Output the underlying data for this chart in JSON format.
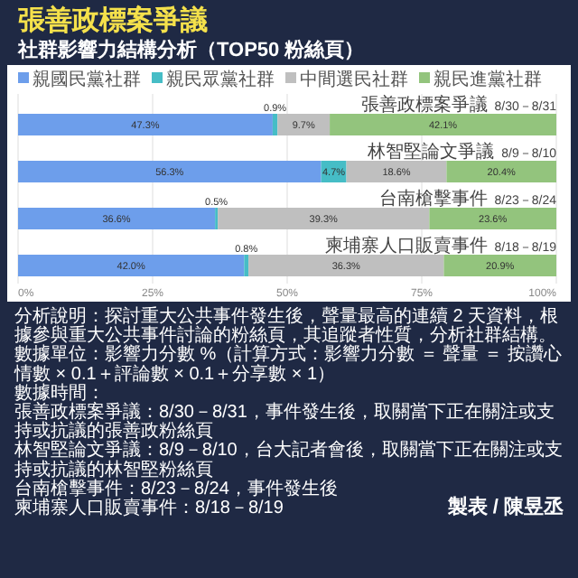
{
  "chart_data": {
    "type": "bar",
    "orientation": "horizontal",
    "stacked": true,
    "title": "張善政標案爭議",
    "subtitle": "社群影響力結構分析（TOP50 粉絲頁）",
    "categories": [
      "張善政標案爭議\n8/30－8/31",
      "林智堅論文爭議\n8/9－8/10",
      "台南槍擊事件\n8/23－8/24",
      "柬埔寨人口販賣事件\n8/18－8/19"
    ],
    "series": [
      {
        "name": "親國民黨社群",
        "color": "#6d9eeb",
        "values": [
          47.3,
          56.3,
          36.6,
          42.0
        ],
        "value_labels": [
          "47.3%",
          "56.3%",
          "36.6%",
          "42.0%"
        ]
      },
      {
        "name": "親民眾黨社群",
        "color": "#46bdc6",
        "values": [
          0.9,
          4.7,
          0.5,
          0.8
        ],
        "value_labels": [
          "0.9%",
          "4.7%",
          "0.5%",
          "0.8%"
        ]
      },
      {
        "name": "中間選民社群",
        "color": "#bfbfbf",
        "values": [
          9.7,
          18.6,
          39.3,
          36.3
        ],
        "value_labels": [
          "9.7%",
          "18.6%",
          "39.3%",
          "36.3%"
        ]
      },
      {
        "name": "親民進黨社群",
        "color": "#93c47d",
        "values": [
          42.1,
          20.4,
          23.6,
          20.9
        ],
        "value_labels": [
          "42.1%",
          "20.4%",
          "23.6%",
          "20.9%"
        ]
      }
    ],
    "xlim": [
      0,
      100
    ],
    "xticks": [
      {
        "value": 0,
        "label": "0%"
      },
      {
        "value": 25,
        "label": "25%"
      },
      {
        "value": 50,
        "label": "50%"
      },
      {
        "value": 75,
        "label": "75%"
      },
      {
        "value": 100,
        "label": "100%"
      }
    ],
    "grid": "x",
    "legend": "top",
    "annotations": [
      "分析說明：探討重大公共事件發生後，聲量最高的連續 2 天資料，根據參與重大公共事件討論的粉絲頁，其追蹤者性質，分析社群結構。",
      "數據單位：影響力分數 %（計算方式：影響力分數 ＝ 聲量 ＝ 按讚心情數 × 0.1＋評論數 × 0.1＋分享數 × 1）",
      "數據時間：",
      "張善政標案爭議：8/30－8/31，事件發生後，取關當下正在關注或支持或抗議的張善政粉絲頁",
      "林智堅論文爭議：8/9－8/10，台大記者會後，取關當下正在關注或支持或抗議的林智堅粉絲頁",
      "台南槍擊事件：8/23－8/24，事件發生後",
      "柬埔寨人口販賣事件：8/18－8/19",
      "製表 / 陳昱丞"
    ]
  }
}
